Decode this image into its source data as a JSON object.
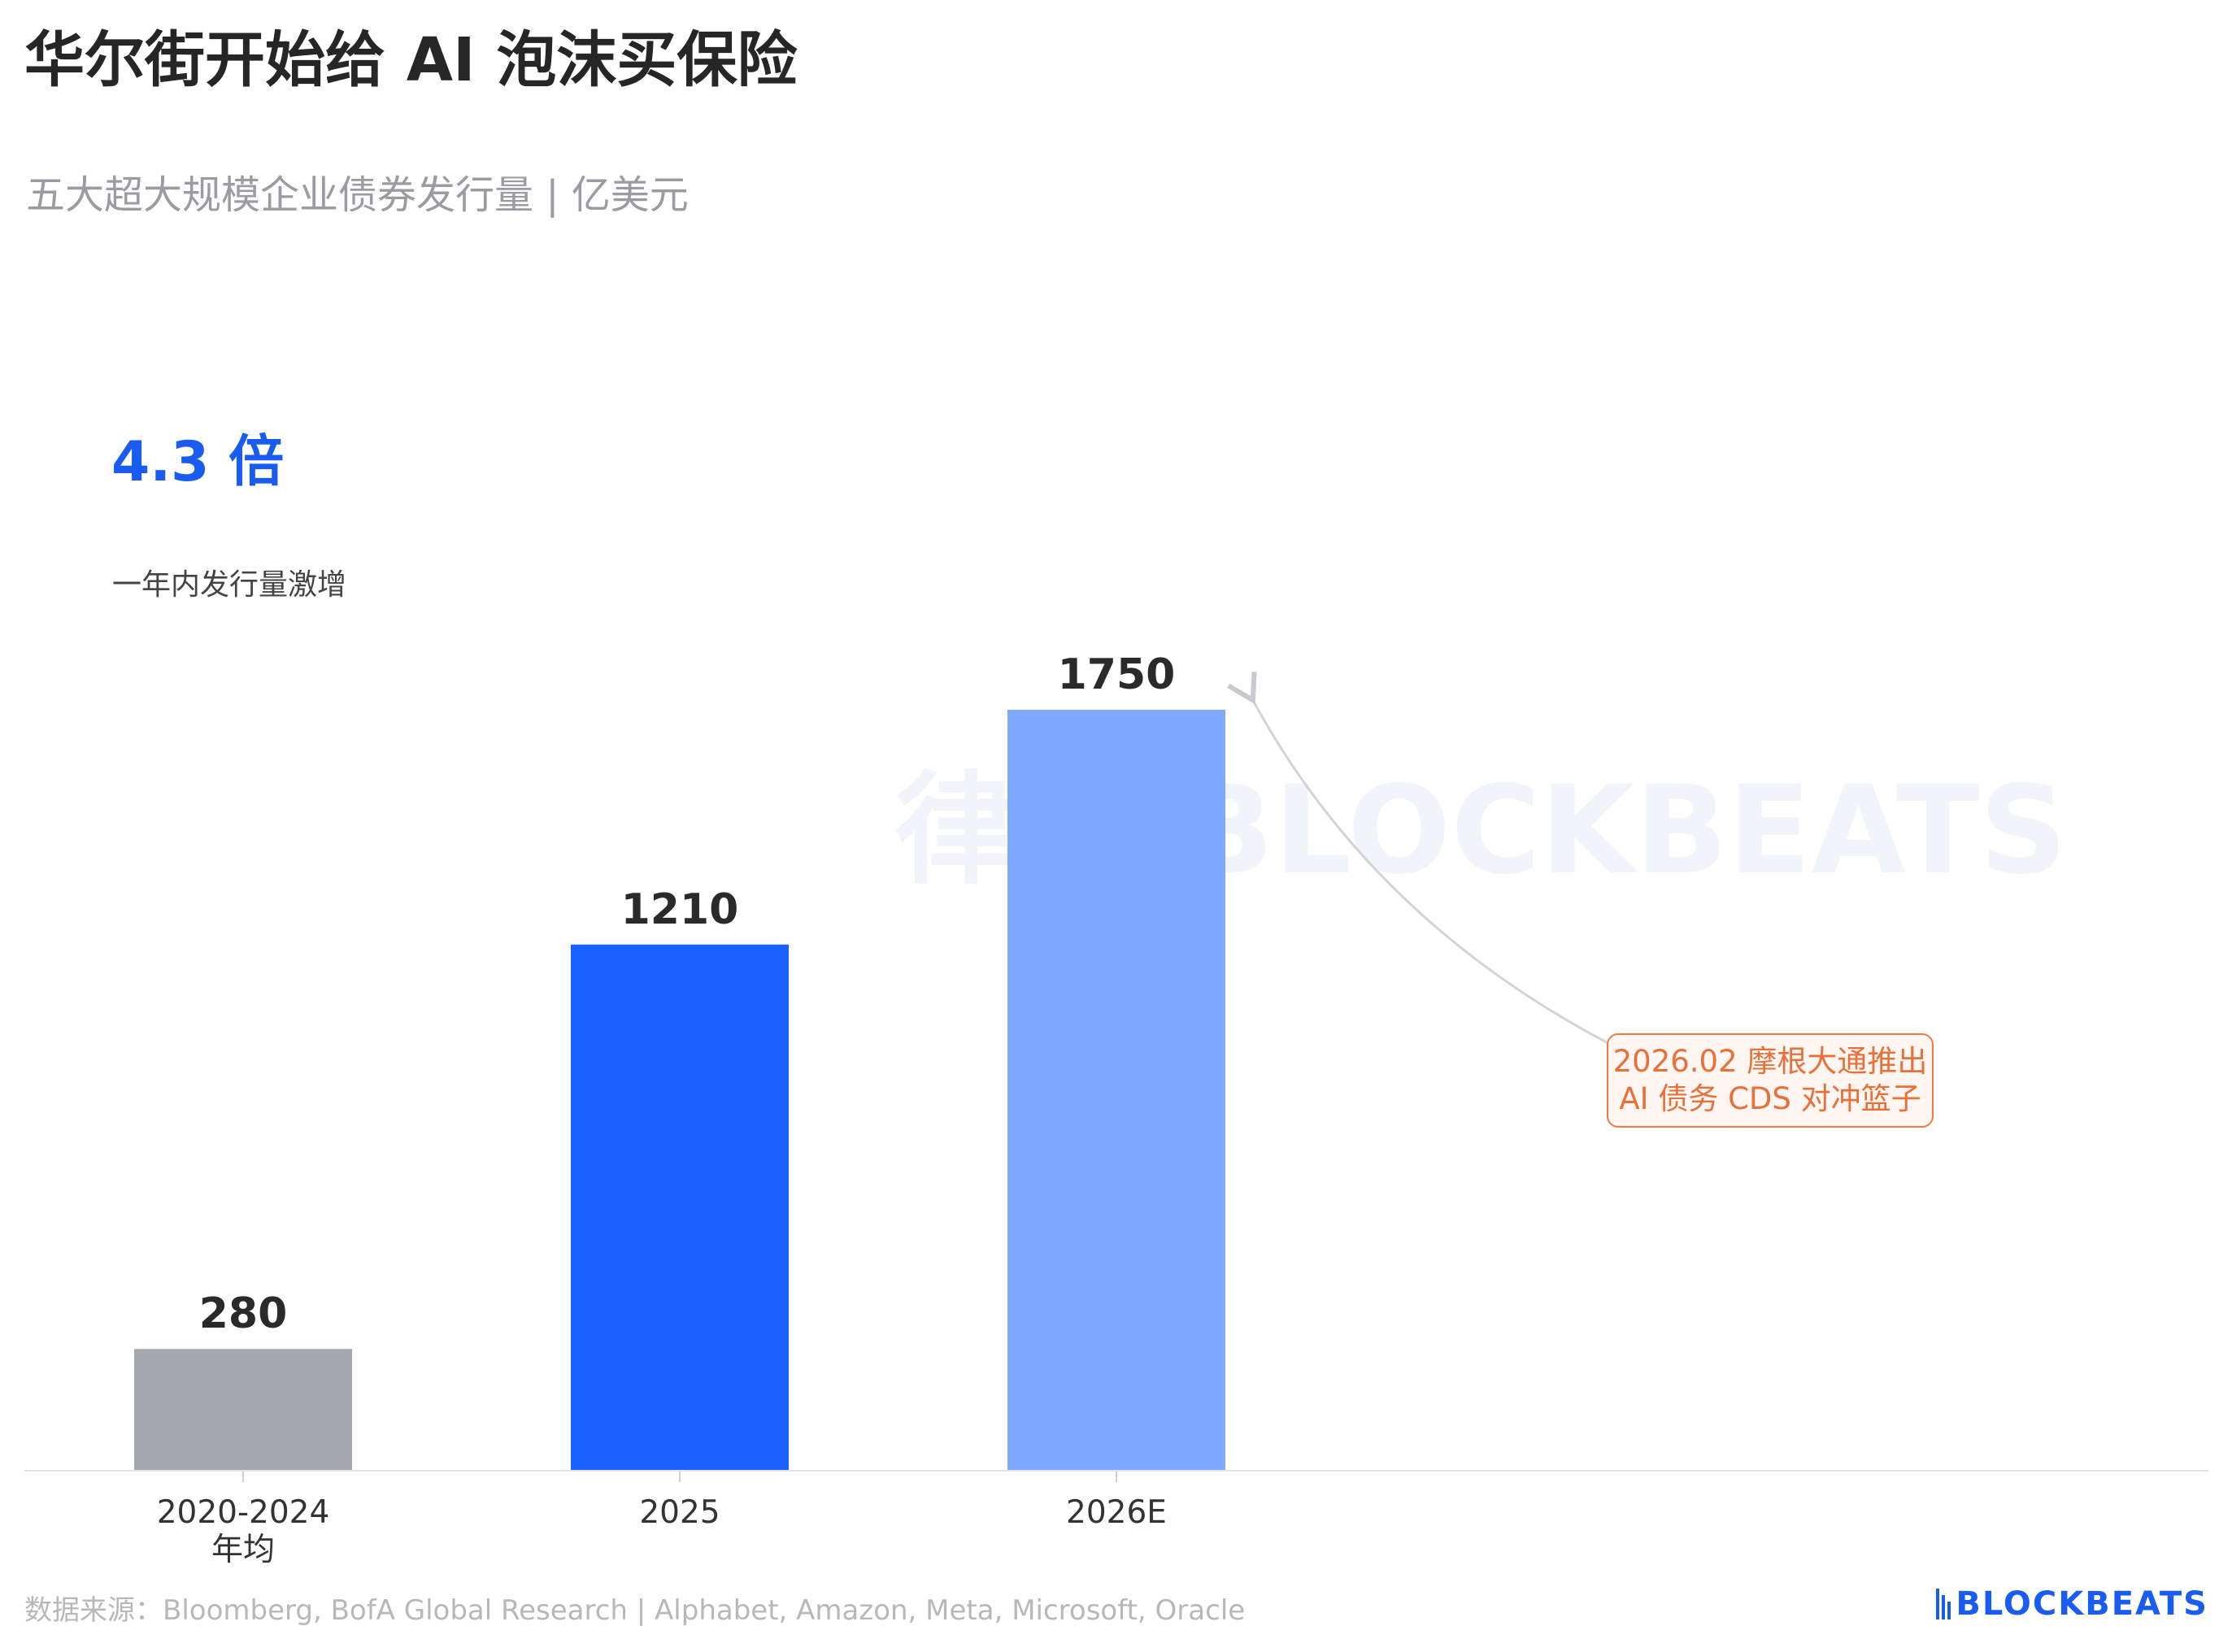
{
  "title": "华尔街开始给 AI 泡沫买保险",
  "subtitle": "五大超大规模企业债券发行量 | 亿美元",
  "highlight": {
    "value": "4.3 倍",
    "note": "一年内发行量激增"
  },
  "annotation": {
    "line1": "2026.02 摩根大通推出",
    "line2": "AI 债务 CDS 对冲篮子"
  },
  "footer": {
    "source": "数据来源：Bloomberg, BofA Global Research | Alphabet, Amazon, Meta, Microsoft, Oracle"
  },
  "logo": {
    "text": "BLOCKBEATS"
  },
  "watermark": {
    "text": "律动 BLOCKBEATS"
  },
  "chart_data": {
    "type": "bar",
    "title": "五大超大规模企业债券发行量 | 亿美元",
    "categories": [
      "2020-2024\n年均",
      "2025",
      "2026E"
    ],
    "category_lines": [
      [
        "2020-2024",
        "年均"
      ],
      [
        "2025"
      ],
      [
        "2026E"
      ]
    ],
    "values": [
      280,
      1210,
      1750
    ],
    "value_labels": [
      "280",
      "1210",
      "1750"
    ],
    "colors": [
      "#a5a7b0",
      "#1a60ff",
      "#7fa8ff"
    ],
    "ylim": [
      0,
      1750
    ],
    "grid": false,
    "xlabel": "",
    "ylabel": ""
  }
}
